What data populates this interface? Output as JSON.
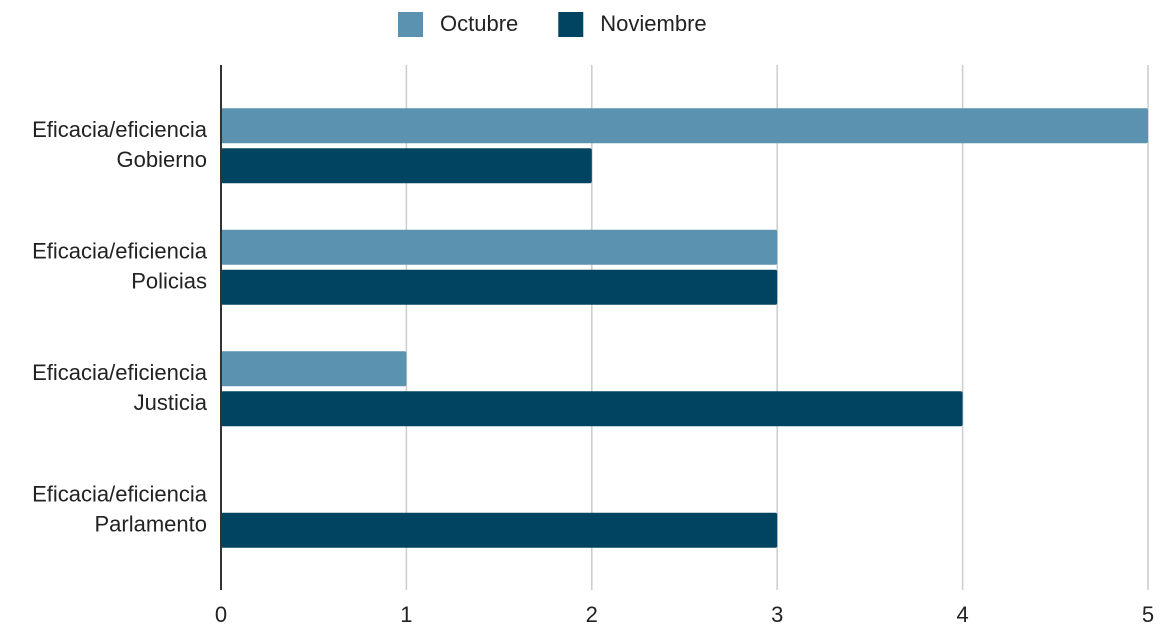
{
  "chart_data": {
    "type": "hbar",
    "categories": [
      "Eficacia/eficiencia Gobierno",
      "Eficacia/eficiencia Policias",
      "Eficacia/eficiencia Justicia",
      "Eficacia/eficiencia Parlamento"
    ],
    "series": [
      {
        "name": "Octubre",
        "color": "#5a92af",
        "values": [
          5,
          3,
          1,
          0
        ]
      },
      {
        "name": "Noviembre",
        "color": "#014461",
        "values": [
          2,
          3,
          4,
          3
        ]
      }
    ],
    "xlim": [
      0,
      5
    ],
    "xticks": [
      0,
      1,
      2,
      3,
      4,
      5
    ],
    "grid": true,
    "legend": "top"
  }
}
